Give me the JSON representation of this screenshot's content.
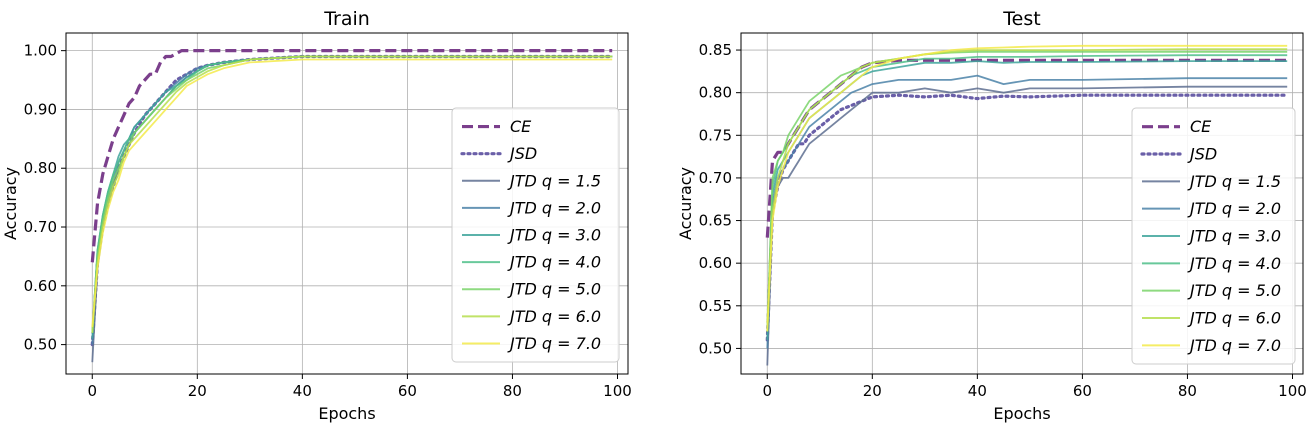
{
  "chart_data": [
    {
      "type": "line",
      "title": "Train",
      "xlabel": "Epochs",
      "ylabel": "Accuracy",
      "xlim": [
        -5,
        102
      ],
      "ylim": [
        0.45,
        1.03
      ],
      "xticks": [
        0,
        20,
        40,
        60,
        80,
        100
      ],
      "yticks": [
        0.5,
        0.6,
        0.7,
        0.8,
        0.9,
        1.0
      ],
      "grid": true,
      "legend_position": "lower-right",
      "series": [
        {
          "name": "CE",
          "style": "dashed",
          "color": "#7b3f8c",
          "x": [
            0,
            1,
            2,
            3,
            4,
            5,
            6,
            7,
            8,
            9,
            10,
            11,
            12,
            13,
            14,
            15,
            16,
            17,
            18,
            20,
            25,
            30,
            40,
            60,
            80,
            99
          ],
          "y": [
            0.64,
            0.74,
            0.79,
            0.82,
            0.85,
            0.87,
            0.89,
            0.91,
            0.92,
            0.94,
            0.95,
            0.96,
            0.96,
            0.98,
            0.99,
            0.99,
            0.995,
            1.0,
            1.0,
            1.0,
            1.0,
            1.0,
            1.0,
            1.0,
            1.0,
            1.0
          ]
        },
        {
          "name": "JSD",
          "style": "dotted",
          "color": "#6a5fa8",
          "x": [
            0,
            1,
            2,
            3,
            4,
            5,
            6,
            7,
            8,
            10,
            12,
            14,
            16,
            18,
            20,
            22,
            25,
            30,
            40,
            60,
            80,
            99
          ],
          "y": [
            0.5,
            0.64,
            0.7,
            0.74,
            0.77,
            0.8,
            0.82,
            0.84,
            0.86,
            0.89,
            0.91,
            0.93,
            0.95,
            0.96,
            0.97,
            0.975,
            0.98,
            0.985,
            0.99,
            0.99,
            0.99,
            0.99
          ]
        },
        {
          "name": "JTD  q = 1.5",
          "style": "solid",
          "color": "#5e6e91",
          "x": [
            0,
            1,
            2,
            3,
            4,
            5,
            6,
            7,
            8,
            10,
            12,
            14,
            16,
            18,
            20,
            22,
            25,
            30,
            40,
            60,
            80,
            99
          ],
          "y": [
            0.47,
            0.63,
            0.7,
            0.74,
            0.77,
            0.8,
            0.82,
            0.84,
            0.86,
            0.88,
            0.9,
            0.92,
            0.94,
            0.955,
            0.965,
            0.975,
            0.98,
            0.985,
            0.99,
            0.99,
            0.99,
            0.99
          ]
        },
        {
          "name": "JTD  q = 2.0",
          "style": "solid",
          "color": "#4b83a8",
          "x": [
            0,
            1,
            2,
            3,
            4,
            5,
            6,
            7,
            8,
            10,
            12,
            14,
            16,
            18,
            20,
            22,
            25,
            30,
            40,
            60,
            80,
            99
          ],
          "y": [
            0.5,
            0.65,
            0.71,
            0.75,
            0.78,
            0.81,
            0.83,
            0.85,
            0.87,
            0.89,
            0.91,
            0.93,
            0.945,
            0.96,
            0.97,
            0.975,
            0.98,
            0.985,
            0.99,
            0.99,
            0.99,
            0.99
          ]
        },
        {
          "name": "JTD  q = 3.0",
          "style": "solid",
          "color": "#3ea59b",
          "x": [
            0,
            1,
            2,
            3,
            4,
            5,
            6,
            7,
            8,
            10,
            12,
            14,
            16,
            18,
            20,
            22,
            25,
            30,
            40,
            60,
            80,
            99
          ],
          "y": [
            0.51,
            0.66,
            0.72,
            0.76,
            0.79,
            0.82,
            0.84,
            0.85,
            0.87,
            0.89,
            0.91,
            0.93,
            0.94,
            0.955,
            0.965,
            0.975,
            0.98,
            0.985,
            0.99,
            0.99,
            0.99,
            0.99
          ]
        },
        {
          "name": "JTD  q = 4.0",
          "style": "solid",
          "color": "#4fc08a",
          "x": [
            0,
            1,
            2,
            3,
            4,
            5,
            6,
            7,
            8,
            10,
            12,
            14,
            16,
            18,
            20,
            22,
            25,
            30,
            40,
            60,
            80,
            99
          ],
          "y": [
            0.52,
            0.66,
            0.72,
            0.76,
            0.79,
            0.81,
            0.83,
            0.85,
            0.86,
            0.88,
            0.9,
            0.92,
            0.94,
            0.95,
            0.965,
            0.975,
            0.98,
            0.985,
            0.99,
            0.99,
            0.99,
            0.99
          ]
        },
        {
          "name": "JTD  q = 5.0",
          "style": "solid",
          "color": "#7ad46a",
          "x": [
            0,
            1,
            2,
            3,
            4,
            5,
            6,
            7,
            8,
            10,
            12,
            14,
            16,
            18,
            20,
            22,
            25,
            30,
            40,
            60,
            80,
            99
          ],
          "y": [
            0.52,
            0.65,
            0.71,
            0.75,
            0.78,
            0.8,
            0.82,
            0.84,
            0.86,
            0.88,
            0.9,
            0.92,
            0.935,
            0.95,
            0.96,
            0.97,
            0.975,
            0.985,
            0.99,
            0.99,
            0.99,
            0.99
          ]
        },
        {
          "name": "JTD  q = 6.0",
          "style": "solid",
          "color": "#b5de4e",
          "x": [
            0,
            1,
            2,
            3,
            4,
            5,
            6,
            7,
            8,
            10,
            12,
            14,
            16,
            18,
            20,
            22,
            25,
            30,
            40,
            60,
            80,
            99
          ],
          "y": [
            0.52,
            0.64,
            0.7,
            0.74,
            0.77,
            0.79,
            0.82,
            0.84,
            0.85,
            0.87,
            0.89,
            0.91,
            0.93,
            0.945,
            0.955,
            0.965,
            0.975,
            0.985,
            0.99,
            0.99,
            0.99,
            0.99
          ]
        },
        {
          "name": "JTD  q = 7.0",
          "style": "solid",
          "color": "#f3ea4a",
          "x": [
            0,
            1,
            2,
            3,
            4,
            5,
            6,
            7,
            8,
            10,
            12,
            14,
            16,
            18,
            20,
            22,
            25,
            30,
            40,
            60,
            80,
            99
          ],
          "y": [
            0.53,
            0.63,
            0.69,
            0.73,
            0.76,
            0.78,
            0.81,
            0.83,
            0.84,
            0.86,
            0.88,
            0.9,
            0.92,
            0.94,
            0.95,
            0.96,
            0.97,
            0.98,
            0.985,
            0.985,
            0.985,
            0.985
          ]
        }
      ]
    },
    {
      "type": "line",
      "title": "Test",
      "xlabel": "Epochs",
      "ylabel": "Accuracy",
      "xlim": [
        -5,
        102
      ],
      "ylim": [
        0.47,
        0.87
      ],
      "xticks": [
        0,
        20,
        40,
        60,
        80,
        100
      ],
      "yticks": [
        0.5,
        0.55,
        0.6,
        0.65,
        0.7,
        0.75,
        0.8,
        0.85
      ],
      "grid": true,
      "legend_position": "lower-right",
      "series": [
        {
          "name": "CE",
          "style": "dashed",
          "color": "#7b3f8c",
          "x": [
            0,
            1,
            2,
            3,
            4,
            5,
            6,
            7,
            8,
            10,
            12,
            14,
            16,
            18,
            20,
            25,
            30,
            40,
            60,
            80,
            99
          ],
          "y": [
            0.63,
            0.72,
            0.73,
            0.73,
            0.74,
            0.75,
            0.76,
            0.77,
            0.78,
            0.79,
            0.8,
            0.81,
            0.82,
            0.83,
            0.835,
            0.838,
            0.838,
            0.838,
            0.838,
            0.838,
            0.838
          ]
        },
        {
          "name": "JSD",
          "style": "dotted",
          "color": "#6a5fa8",
          "x": [
            0,
            1,
            2,
            3,
            4,
            5,
            6,
            7,
            8,
            10,
            12,
            14,
            16,
            18,
            20,
            25,
            30,
            35,
            40,
            45,
            50,
            60,
            80,
            99
          ],
          "y": [
            0.51,
            0.66,
            0.69,
            0.71,
            0.72,
            0.73,
            0.74,
            0.74,
            0.75,
            0.76,
            0.77,
            0.78,
            0.785,
            0.79,
            0.795,
            0.797,
            0.795,
            0.797,
            0.793,
            0.796,
            0.795,
            0.797,
            0.797,
            0.797
          ]
        },
        {
          "name": "JTD  q = 1.5",
          "style": "solid",
          "color": "#5e6e91",
          "x": [
            0,
            1,
            2,
            3,
            4,
            5,
            6,
            7,
            8,
            10,
            12,
            14,
            16,
            18,
            20,
            25,
            30,
            35,
            40,
            45,
            50,
            60,
            80,
            99
          ],
          "y": [
            0.48,
            0.66,
            0.69,
            0.7,
            0.7,
            0.71,
            0.72,
            0.73,
            0.74,
            0.75,
            0.76,
            0.77,
            0.78,
            0.79,
            0.8,
            0.8,
            0.805,
            0.8,
            0.805,
            0.8,
            0.805,
            0.805,
            0.807,
            0.807
          ]
        },
        {
          "name": "JTD  q = 2.0",
          "style": "solid",
          "color": "#4b83a8",
          "x": [
            0,
            1,
            2,
            3,
            4,
            5,
            6,
            7,
            8,
            10,
            12,
            14,
            16,
            18,
            20,
            25,
            30,
            35,
            40,
            45,
            50,
            60,
            80,
            99
          ],
          "y": [
            0.5,
            0.67,
            0.7,
            0.71,
            0.72,
            0.73,
            0.74,
            0.75,
            0.76,
            0.77,
            0.78,
            0.79,
            0.8,
            0.805,
            0.81,
            0.815,
            0.815,
            0.815,
            0.82,
            0.81,
            0.815,
            0.815,
            0.817,
            0.817
          ]
        },
        {
          "name": "JTD  q = 3.0",
          "style": "solid",
          "color": "#3ea59b",
          "x": [
            0,
            1,
            2,
            3,
            4,
            5,
            6,
            7,
            8,
            10,
            12,
            14,
            16,
            18,
            20,
            25,
            30,
            35,
            40,
            45,
            50,
            60,
            80,
            99
          ],
          "y": [
            0.51,
            0.68,
            0.71,
            0.72,
            0.73,
            0.74,
            0.75,
            0.76,
            0.77,
            0.78,
            0.79,
            0.8,
            0.81,
            0.82,
            0.825,
            0.83,
            0.835,
            0.835,
            0.837,
            0.835,
            0.836,
            0.836,
            0.837,
            0.837
          ]
        },
        {
          "name": "JTD  q = 4.0",
          "style": "solid",
          "color": "#4fc08a",
          "x": [
            0,
            1,
            2,
            3,
            4,
            5,
            6,
            7,
            8,
            10,
            12,
            14,
            16,
            18,
            20,
            25,
            30,
            35,
            40,
            45,
            50,
            60,
            80,
            99
          ],
          "y": [
            0.52,
            0.69,
            0.72,
            0.73,
            0.74,
            0.75,
            0.76,
            0.77,
            0.78,
            0.79,
            0.8,
            0.81,
            0.82,
            0.825,
            0.83,
            0.835,
            0.84,
            0.84,
            0.842,
            0.842,
            0.842,
            0.843,
            0.844,
            0.844
          ]
        },
        {
          "name": "JTD  q = 5.0",
          "style": "solid",
          "color": "#7ad46a",
          "x": [
            0,
            1,
            2,
            3,
            4,
            5,
            6,
            7,
            8,
            10,
            12,
            14,
            16,
            18,
            20,
            25,
            30,
            35,
            40,
            45,
            50,
            60,
            80,
            99
          ],
          "y": [
            0.52,
            0.7,
            0.72,
            0.73,
            0.75,
            0.76,
            0.77,
            0.78,
            0.79,
            0.8,
            0.81,
            0.82,
            0.825,
            0.83,
            0.835,
            0.84,
            0.845,
            0.847,
            0.848,
            0.848,
            0.848,
            0.848,
            0.848,
            0.848
          ]
        },
        {
          "name": "JTD  q = 6.0",
          "style": "solid",
          "color": "#b5de4e",
          "x": [
            0,
            1,
            2,
            3,
            4,
            5,
            6,
            7,
            8,
            10,
            12,
            14,
            16,
            18,
            20,
            25,
            30,
            35,
            40,
            45,
            50,
            60,
            80,
            99
          ],
          "y": [
            0.53,
            0.66,
            0.7,
            0.72,
            0.74,
            0.75,
            0.76,
            0.77,
            0.78,
            0.79,
            0.8,
            0.81,
            0.82,
            0.83,
            0.835,
            0.84,
            0.845,
            0.848,
            0.85,
            0.85,
            0.85,
            0.85,
            0.851,
            0.851
          ]
        },
        {
          "name": "JTD  q = 7.0",
          "style": "solid",
          "color": "#f3ea4a",
          "x": [
            0,
            1,
            2,
            3,
            4,
            5,
            6,
            7,
            8,
            10,
            12,
            14,
            16,
            18,
            20,
            25,
            30,
            35,
            40,
            45,
            50,
            60,
            80,
            99
          ],
          "y": [
            0.52,
            0.65,
            0.69,
            0.71,
            0.73,
            0.74,
            0.75,
            0.76,
            0.77,
            0.78,
            0.79,
            0.8,
            0.81,
            0.82,
            0.83,
            0.84,
            0.845,
            0.85,
            0.852,
            0.853,
            0.854,
            0.855,
            0.855,
            0.855
          ]
        }
      ]
    }
  ]
}
